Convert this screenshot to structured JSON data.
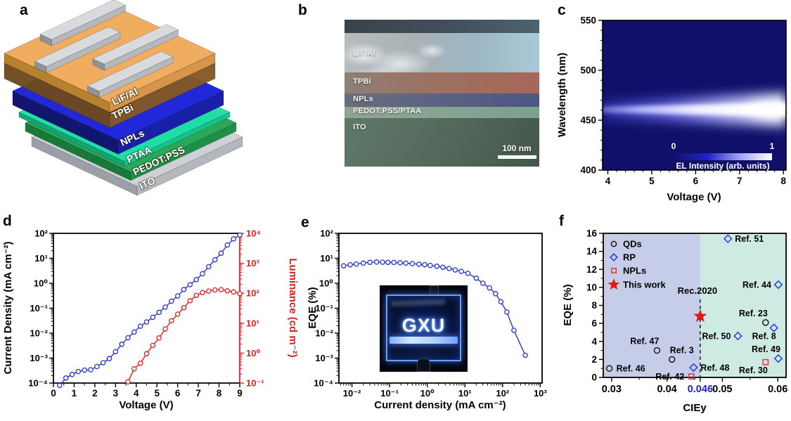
{
  "panel_letters": [
    "a",
    "b",
    "c",
    "d",
    "e",
    "f"
  ],
  "panel_a": {
    "description": "3D schematic of LED device stack",
    "device_layers": [
      "LiF/Al",
      "TPBi",
      "NPLs",
      "PTAA",
      "PEDOT:PSS",
      "ITO"
    ]
  },
  "panel_b": {
    "description": "Cross-sectional SEM image of device",
    "layer_labels": [
      "LiF/Al",
      "TPBi",
      "NPLs",
      "PEDOT:PSS/PTAA",
      "ITO"
    ],
    "scale_bar_label": "100 nm"
  },
  "chart_data": [
    {
      "panel": "c",
      "type": "heatmap",
      "xlabel": "Voltage (V)",
      "ylabel": "Wavelength (nm)",
      "xlim": [
        3.88,
        8.06
      ],
      "xticks": [
        4,
        5,
        6,
        7,
        8
      ],
      "ylim": [
        400,
        550
      ],
      "yticks": [
        400,
        450,
        500,
        550
      ],
      "colorbar": {
        "min_label": "0",
        "max_label": "1",
        "title": "EL Intensity (arb. units)"
      },
      "emission": {
        "peak_nm": 462,
        "band_nm": [
          450,
          474
        ],
        "trend": "EL intensity increases with voltage, brightest near 8 V"
      },
      "colors": {
        "background": "#10106b",
        "peak": "#ffffff"
      }
    },
    {
      "panel": "d",
      "type": "line",
      "xlabel": "Voltage (V)",
      "ylabel": "Current Density  (mA cm⁻²)",
      "y2label": "Luminance (cd m⁻²)",
      "xlim": [
        0,
        9
      ],
      "xtick_step": 1,
      "ylog_exponents": [
        -4,
        2
      ],
      "y2log_exponents": [
        -1,
        4
      ],
      "series": [
        {
          "name": "current-density",
          "axis": "y",
          "color": "#2334c4",
          "marker": "circle",
          "data": [
            [
              0.3,
              8e-05
            ],
            [
              0.6,
              0.00016
            ],
            [
              0.9,
              0.00022
            ],
            [
              1.2,
              0.00029
            ],
            [
              1.5,
              0.00033
            ],
            [
              1.8,
              0.00034
            ],
            [
              2.1,
              0.00046
            ],
            [
              2.4,
              0.00065
            ],
            [
              2.7,
              0.00095
            ],
            [
              3,
              0.0018
            ],
            [
              3.3,
              0.0036
            ],
            [
              3.6,
              0.0065
            ],
            [
              3.9,
              0.011
            ],
            [
              4.2,
              0.019
            ],
            [
              4.5,
              0.028
            ],
            [
              4.8,
              0.043
            ],
            [
              5.1,
              0.068
            ],
            [
              5.4,
              0.11
            ],
            [
              5.7,
              0.19
            ],
            [
              6,
              0.31
            ],
            [
              6.3,
              0.56
            ],
            [
              6.6,
              0.88
            ],
            [
              6.9,
              1.4
            ],
            [
              7.2,
              2.4
            ],
            [
              7.5,
              4.6
            ],
            [
              7.8,
              8.7
            ],
            [
              8.1,
              16
            ],
            [
              8.4,
              34
            ],
            [
              8.7,
              60
            ],
            [
              9,
              85
            ]
          ]
        },
        {
          "name": "luminance",
          "axis": "y2",
          "color": "#dc2020",
          "marker": "circle",
          "data": [
            [
              3.6,
              0.11
            ],
            [
              3.9,
              0.3
            ],
            [
              4.2,
              0.46
            ],
            [
              4.5,
              0.95
            ],
            [
              4.8,
              1.8
            ],
            [
              5.1,
              3.2
            ],
            [
              5.4,
              6.4
            ],
            [
              5.7,
              12
            ],
            [
              6,
              20
            ],
            [
              6.3,
              33
            ],
            [
              6.6,
              56
            ],
            [
              6.9,
              85
            ],
            [
              7.2,
              105
            ],
            [
              7.5,
              118
            ],
            [
              7.8,
              128
            ],
            [
              8.1,
              132
            ],
            [
              8.4,
              120
            ],
            [
              8.7,
              110
            ],
            [
              9,
              98
            ]
          ]
        }
      ]
    },
    {
      "panel": "e",
      "type": "line",
      "xlabel": "Current density (mA cm⁻²)",
      "ylabel": "EQE (%)",
      "xlim": [
        0.0045,
        1120
      ],
      "xlog_exponents": [
        -2,
        3
      ],
      "ylog_exponents": [
        -4,
        2
      ],
      "series": [
        {
          "name": "eqe",
          "color": "#2334c4",
          "marker": "circle",
          "data": [
            [
              0.006,
              5.0
            ],
            [
              0.009,
              5.5
            ],
            [
              0.013,
              5.9
            ],
            [
              0.02,
              6.4
            ],
            [
              0.03,
              6.9
            ],
            [
              0.045,
              7.1
            ],
            [
              0.065,
              7.0
            ],
            [
              0.09,
              6.9
            ],
            [
              0.13,
              6.8
            ],
            [
              0.19,
              6.6
            ],
            [
              0.27,
              6.4
            ],
            [
              0.4,
              6.1
            ],
            [
              0.6,
              5.8
            ],
            [
              0.85,
              5.5
            ],
            [
              1.2,
              5.2
            ],
            [
              1.8,
              4.8
            ],
            [
              2.6,
              4.4
            ],
            [
              3.8,
              3.9
            ],
            [
              5.5,
              3.4
            ],
            [
              8,
              3.0
            ],
            [
              12,
              2.5
            ],
            [
              20,
              1.6
            ],
            [
              30,
              1.0
            ],
            [
              45,
              0.65
            ],
            [
              65,
              0.38
            ],
            [
              90,
              0.18
            ],
            [
              130,
              0.07
            ],
            [
              200,
              0.013
            ],
            [
              400,
              0.0013
            ]
          ]
        }
      ],
      "inset": {
        "text": "GXU",
        "description": "photograph of blue-emitting LED pixel"
      }
    },
    {
      "panel": "f",
      "type": "scatter",
      "xlabel": "CIEy",
      "ylabel": "EQE (%)",
      "xlim": [
        0.0285,
        0.0615
      ],
      "xticks": [
        {
          "v": 0.03,
          "label": "0.03"
        },
        {
          "v": 0.04,
          "label": "0.04"
        },
        {
          "v": 0.046,
          "label": "0.046",
          "color": "#2222cc"
        },
        {
          "v": 0.05,
          "label": "0.05"
        },
        {
          "v": 0.06,
          "label": "0.06"
        }
      ],
      "ylim": [
        0,
        16
      ],
      "ytick_step": 2,
      "regions": [
        {
          "from": 0.0285,
          "to": 0.046,
          "color": "#c6cde9"
        },
        {
          "from": 0.046,
          "to": 0.0615,
          "color": "#cdeae3"
        }
      ],
      "vline": {
        "x": 0.046,
        "label": "Rec.2020"
      },
      "legend": [
        {
          "label": "QDs",
          "marker": "circle",
          "color": "#1a1a1a"
        },
        {
          "label": "RP",
          "marker": "diamond",
          "color": "#3040dd"
        },
        {
          "label": "NPLs",
          "marker": "square",
          "color": "#e04040"
        },
        {
          "label": "This work",
          "marker": "star",
          "color": "#e81515",
          "filled": true
        }
      ],
      "points": [
        {
          "label": "Ref. 51",
          "series": "RP",
          "x": 0.051,
          "y": 15.4,
          "label_side": "right"
        },
        {
          "label": "Ref. 44",
          "series": "RP",
          "x": 0.0601,
          "y": 10.3,
          "label_side": "left"
        },
        {
          "label": "Ref. 23",
          "series": "QDs",
          "x": 0.0578,
          "y": 6.1,
          "label_side": "above-left"
        },
        {
          "label": "Ref. 8",
          "series": "RP",
          "x": 0.0593,
          "y": 5.5,
          "label_side": "below-left"
        },
        {
          "label": "Ref. 50",
          "series": "RP",
          "x": 0.0528,
          "y": 4.6,
          "label_side": "left"
        },
        {
          "label": "Ref. 49",
          "series": "RP",
          "x": 0.0601,
          "y": 2.1,
          "label_side": "above-left"
        },
        {
          "label": "Ref. 30",
          "series": "NPLs",
          "x": 0.0578,
          "y": 1.7,
          "label_side": "below-left"
        },
        {
          "label": "Ref. 48",
          "series": "RP",
          "x": 0.0448,
          "y": 1.1,
          "label_side": "right"
        },
        {
          "label": "Ref. 42",
          "series": "NPLs",
          "x": 0.0444,
          "y": 0.1,
          "label_side": "left"
        },
        {
          "label": "Ref. 47",
          "series": "QDs",
          "x": 0.0382,
          "y": 3.0,
          "label_side": "above-left"
        },
        {
          "label": "Ref. 3",
          "series": "QDs",
          "x": 0.0409,
          "y": 2.0,
          "label_side": "above-right"
        },
        {
          "label": "Ref. 46",
          "series": "QDs",
          "x": 0.0296,
          "y": 1.0,
          "label_side": "right"
        },
        {
          "label": "This work",
          "series": "This work",
          "x": 0.046,
          "y": 6.8,
          "label_side": "none"
        }
      ]
    }
  ]
}
